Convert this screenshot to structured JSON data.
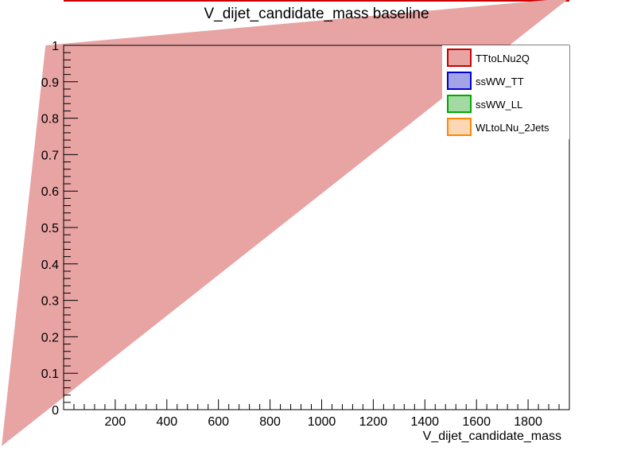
{
  "chart_data": {
    "type": "area",
    "title": "V_dijet_candidate_mass  baseline",
    "xlabel": "V_dijet_candidate_mass",
    "ylabel": "",
    "xlim": [
      0,
      1960
    ],
    "ylim": [
      0,
      1
    ],
    "x_tick_labels": [
      "200",
      "400",
      "600",
      "800",
      "1000",
      "1200",
      "1400",
      "1600",
      "1800"
    ],
    "x_ticks": [
      200,
      400,
      600,
      800,
      1000,
      1200,
      1400,
      1600,
      1800
    ],
    "y_tick_labels": [
      "0",
      "0.1",
      "0.2",
      "0.3",
      "0.4",
      "0.5",
      "0.6",
      "0.7",
      "0.8",
      "0.9",
      "1"
    ],
    "y_ticks": [
      0,
      0.1,
      0.2,
      0.3,
      0.4,
      0.5,
      0.6,
      0.7,
      0.8,
      0.9,
      1.0
    ],
    "legend_position": "top-right",
    "series": [
      {
        "name": "TTtoLNu2Q",
        "fill": "#e8a3a3",
        "line": "#cc0000"
      },
      {
        "name": "ssWW_TT",
        "fill": "#a3a3e8",
        "line": "#0000cc"
      },
      {
        "name": "ssWW_LL",
        "fill": "#a3d9a3",
        "line": "#00aa00"
      },
      {
        "name": "WLtoLNu_2Jets",
        "fill": "#fbd7b5",
        "line": "#ff8800"
      }
    ],
    "visible_fill": {
      "series": "TTtoLNu2Q",
      "color": "#e8a3a3",
      "outline": [
        [
          -240,
          -0.1
        ],
        [
          1960,
          1.13
        ],
        [
          -70,
          1.0
        ],
        [
          -240,
          -0.1
        ]
      ]
    }
  }
}
